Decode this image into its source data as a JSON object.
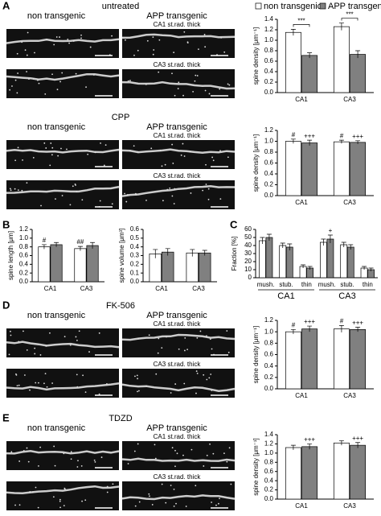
{
  "panels": [
    {
      "letter": "A",
      "title": "untreated",
      "left": "non transgenic",
      "right": "APP transgenic",
      "rows": [
        "CA1 st.rad. thick",
        "CA3 st.rad. thick"
      ]
    },
    {
      "title": "CPP",
      "left": "non transgenic",
      "right": "APP transgenic",
      "rows": [
        "CA1 st.rad. thick",
        "CA3 st.rad. thick"
      ]
    },
    {
      "letter": "D",
      "title": "FK-506",
      "left": "non transgenic",
      "right": "APP transgenic",
      "rows": [
        "CA1 st.rad. thick",
        "CA3 st.rad. thick"
      ]
    },
    {
      "letter": "E",
      "title": "TDZD",
      "left": "non transgenic",
      "right": "APP transgenic",
      "rows": [
        "CA1 st.rad. thick",
        "CA3 st.rad. thick"
      ]
    }
  ],
  "letters": [
    "B",
    "C"
  ],
  "chart_data": [
    {
      "type": "bar",
      "ylabel": "spine density [μm⁻¹]",
      "categories": [
        "CA1",
        "CA3"
      ],
      "series": [
        {
          "name": "non transgenic",
          "color": "#ffffff",
          "values": [
            1.15,
            1.26
          ],
          "errors": [
            0.06,
            0.07
          ]
        },
        {
          "name": "APP transgenic",
          "color": "#808080",
          "values": [
            0.71,
            0.73
          ],
          "errors": [
            0.05,
            0.07
          ]
        }
      ],
      "brackets": [
        "***",
        "***"
      ],
      "legend": true,
      "ylim": [
        0,
        1.4
      ],
      "yticks": [
        {
          "value": 0,
          "label": "0.0"
        },
        {
          "value": 0.2,
          "label": "0.2"
        },
        {
          "value": 0.4,
          "label": "0.4"
        },
        {
          "value": 0.6,
          "label": "0.6"
        },
        {
          "value": 0.8,
          "label": "0.8"
        },
        {
          "value": 1,
          "label": "1.0"
        },
        {
          "value": 1.2,
          "label": "1.2"
        },
        {
          "value": 1.4,
          "label": "1.4"
        }
      ]
    },
    {
      "type": "bar",
      "ylabel": "spine density [μm⁻¹]",
      "categories": [
        "CA1",
        "CA3"
      ],
      "series": [
        {
          "name": "non transgenic",
          "color": "#ffffff",
          "values": [
            1.0,
            0.99
          ],
          "errors": [
            0.04,
            0.03
          ],
          "labels": [
            "#",
            "#"
          ]
        },
        {
          "name": "APP transgenic",
          "color": "#808080",
          "values": [
            0.97,
            0.98
          ],
          "errors": [
            0.05,
            0.03
          ],
          "labels": [
            "+++",
            "+++"
          ]
        }
      ],
      "ylim": [
        0,
        1.2
      ],
      "yticks": [
        {
          "value": 0,
          "label": "0.0"
        },
        {
          "value": 0.2,
          "label": "0.2"
        },
        {
          "value": 0.4,
          "label": "0.4"
        },
        {
          "value": 0.6,
          "label": "0.6"
        },
        {
          "value": 0.8,
          "label": "0.8"
        },
        {
          "value": 1,
          "label": "1.0"
        },
        {
          "value": 1.2,
          "label": "1.2"
        }
      ]
    },
    {
      "type": "bar",
      "ylabel": "spine length [μm]",
      "categories": [
        "CA1",
        "CA3"
      ],
      "series": [
        {
          "name": "non transgenic",
          "color": "#ffffff",
          "values": [
            0.8,
            0.76
          ],
          "errors": [
            0.05,
            0.05
          ],
          "labels": [
            "#",
            "##"
          ]
        },
        {
          "name": "APP transgenic",
          "color": "#808080",
          "values": [
            0.85,
            0.83
          ],
          "errors": [
            0.05,
            0.07
          ]
        }
      ],
      "ylim": [
        0,
        1.2
      ],
      "yticks": [
        {
          "value": 0,
          "label": "0.0"
        },
        {
          "value": 0.2,
          "label": "0.2"
        },
        {
          "value": 0.4,
          "label": "0.4"
        },
        {
          "value": 0.6,
          "label": "0.6"
        },
        {
          "value": 0.8,
          "label": "0.8"
        },
        {
          "value": 1,
          "label": "1.0"
        },
        {
          "value": 1.2,
          "label": "1.2"
        }
      ]
    },
    {
      "type": "bar",
      "ylabel": "spine volume [μm³]",
      "categories": [
        "CA1",
        "CA3"
      ],
      "series": [
        {
          "name": "non transgenic",
          "color": "#ffffff",
          "values": [
            0.32,
            0.33
          ],
          "errors": [
            0.05,
            0.04
          ]
        },
        {
          "name": "APP transgenic",
          "color": "#808080",
          "values": [
            0.34,
            0.33
          ],
          "errors": [
            0.04,
            0.03
          ]
        }
      ],
      "ylim": [
        0,
        0.6
      ],
      "yticks": [
        {
          "value": 0,
          "label": "0.0"
        },
        0.1,
        0.2,
        0.3,
        0.4,
        0.5,
        0.6
      ]
    },
    {
      "type": "bar",
      "ylabel": "Fraction [%]",
      "categories": [
        "mush.",
        "stub.",
        "thin",
        "mush.",
        "stub.",
        "thin"
      ],
      "groups": [
        "CA1",
        "CA3"
      ],
      "series": [
        {
          "name": "non transgenic",
          "color": "#ffffff",
          "values": [
            46,
            40,
            14,
            44,
            41,
            12
          ],
          "errors": [
            4,
            3,
            2,
            4,
            3,
            2
          ]
        },
        {
          "name": "APP transgenic",
          "color": "#808080",
          "values": [
            50,
            38,
            12,
            48,
            38,
            10
          ],
          "errors": [
            4,
            4,
            2,
            5,
            3,
            2
          ],
          "labels": [
            null,
            null,
            null,
            "+",
            null,
            null
          ]
        }
      ],
      "ylim": [
        0,
        60
      ],
      "yticks": [
        0,
        10,
        20,
        30,
        40,
        50,
        60
      ]
    },
    {
      "type": "bar",
      "ylabel": "spine density [μm⁻¹]",
      "categories": [
        "CA1",
        "CA3"
      ],
      "series": [
        {
          "name": "non transgenic",
          "color": "#ffffff",
          "values": [
            1.0,
            1.05
          ],
          "errors": [
            0.04,
            0.06
          ],
          "labels": [
            "#",
            "#"
          ]
        },
        {
          "name": "APP transgenic",
          "color": "#808080",
          "values": [
            1.05,
            1.04
          ],
          "errors": [
            0.05,
            0.04
          ],
          "labels": [
            "+++",
            "+++"
          ]
        }
      ],
      "ylim": [
        0,
        1.2
      ],
      "yticks": [
        {
          "value": 0,
          "label": "0.0"
        },
        {
          "value": 0.2,
          "label": "0.2"
        },
        {
          "value": 0.4,
          "label": "0.4"
        },
        {
          "value": 0.6,
          "label": "0.6"
        },
        {
          "value": 0.8,
          "label": "0.8"
        },
        {
          "value": 1,
          "label": "1.0"
        },
        {
          "value": 1.2,
          "label": "1.2"
        }
      ]
    },
    {
      "type": "bar",
      "ylabel": "spine density [μm⁻¹]",
      "categories": [
        "CA1",
        "CA3"
      ],
      "series": [
        {
          "name": "non transgenic",
          "color": "#ffffff",
          "values": [
            1.12,
            1.22
          ],
          "errors": [
            0.05,
            0.05
          ]
        },
        {
          "name": "APP transgenic",
          "color": "#808080",
          "values": [
            1.14,
            1.17
          ],
          "errors": [
            0.06,
            0.06
          ],
          "labels": [
            "+++",
            "+++"
          ]
        }
      ],
      "ylim": [
        0,
        1.4
      ],
      "yticks": [
        {
          "value": 0,
          "label": "0.0"
        },
        {
          "value": 0.2,
          "label": "0.2"
        },
        {
          "value": 0.4,
          "label": "0.4"
        },
        {
          "value": 0.6,
          "label": "0.6"
        },
        {
          "value": 0.8,
          "label": "0.8"
        },
        {
          "value": 1,
          "label": "1.0"
        },
        {
          "value": 1.2,
          "label": "1.2"
        },
        {
          "value": 1.4,
          "label": "1.4"
        }
      ]
    }
  ]
}
